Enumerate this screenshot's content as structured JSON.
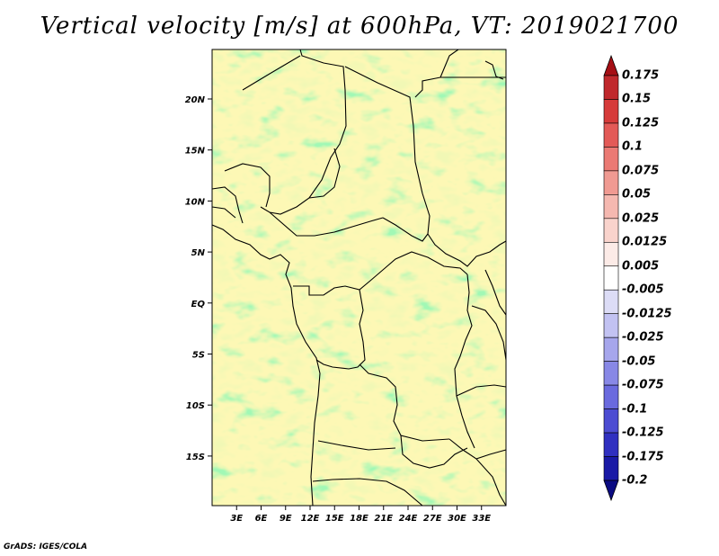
{
  "title": "Vertical velocity [m/s] at 600hPa, VT: 2019021700",
  "footer": "GrADS: IGES/COLA",
  "map": {
    "lon_ticks": [
      "3E",
      "6E",
      "9E",
      "12E",
      "15E",
      "18E",
      "21E",
      "24E",
      "27E",
      "30E",
      "33E"
    ],
    "lat_ticks": [
      "20N",
      "15N",
      "10N",
      "5N",
      "EQ",
      "5S",
      "10S",
      "15S"
    ]
  },
  "colorbar": {
    "levels": [
      "0.175",
      "0.15",
      "0.125",
      "0.1",
      "0.075",
      "0.05",
      "0.025",
      "0.0125",
      "0.005",
      "-0.005",
      "-0.0125",
      "-0.025",
      "-0.05",
      "-0.075",
      "-0.1",
      "-0.125",
      "-0.175",
      "-0.2"
    ],
    "colors": [
      "#a50f15",
      "#c0282c",
      "#d63b3a",
      "#e35a57",
      "#eb7a74",
      "#f09a92",
      "#f5b8b0",
      "#f9d3cc",
      "#fcebe7",
      "#ffffff",
      "#dcdcf6",
      "#c2c2f2",
      "#a6a6ec",
      "#8888e6",
      "#6a6ade",
      "#4c4cd2",
      "#3030c0",
      "#1a1aa6",
      "#0b0b82"
    ]
  }
}
